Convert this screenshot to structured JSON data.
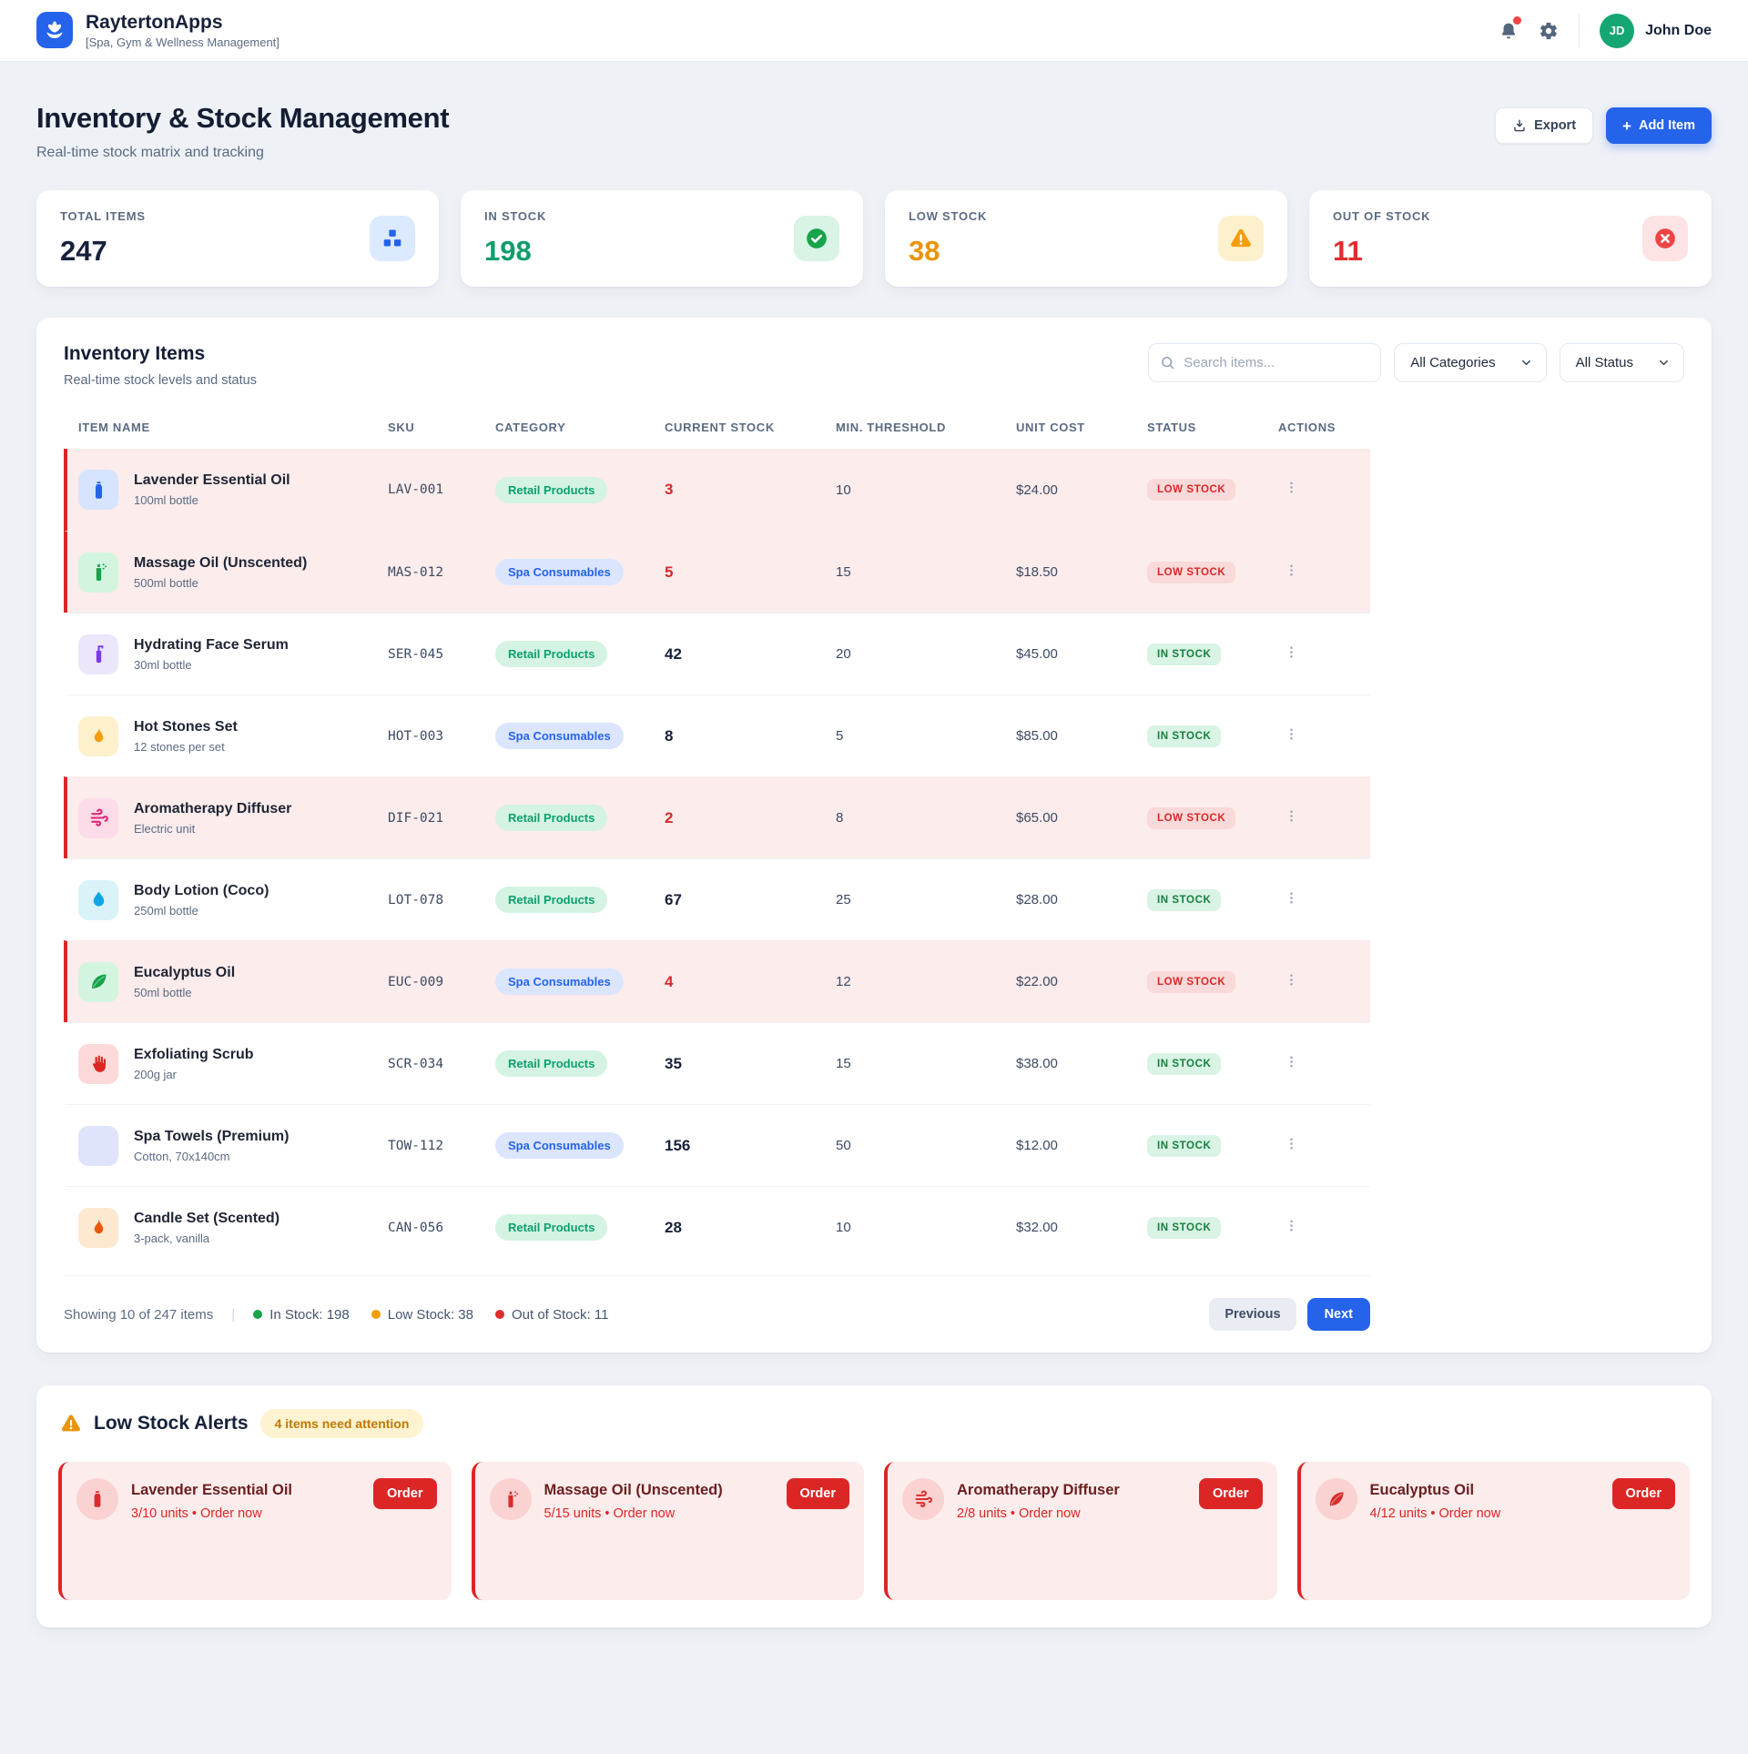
{
  "header": {
    "app_name": "RaytertonApps",
    "tagline": "[Spa, Gym & Wellness Management]",
    "user_name": "John Doe",
    "user_initials": "JD",
    "accent_color": "#2563eb",
    "avatar_color": "#16a673"
  },
  "page": {
    "title": "Inventory & Stock Management",
    "subtitle": "Real-time stock matrix and tracking",
    "export_label": "Export",
    "add_item_plus": "+",
    "add_item_label": "Add Item"
  },
  "stats": [
    {
      "label": "TOTAL ITEMS",
      "value": "247",
      "icon": "boxes-icon",
      "value_color": "#16213a",
      "icon_bg": "#dbeafe",
      "icon_color": "#2563eb"
    },
    {
      "label": "IN STOCK",
      "value": "198",
      "icon": "check-circle-icon",
      "value_color": "#0f9d6b",
      "icon_bg": "#d9f3e4",
      "icon_color": "#16a34a"
    },
    {
      "label": "LOW STOCK",
      "value": "38",
      "icon": "warning-icon",
      "value_color": "#e8950c",
      "icon_bg": "#fdf0cd",
      "icon_color": "#f59e0b"
    },
    {
      "label": "OUT OF STOCK",
      "value": "11",
      "icon": "x-circle-icon",
      "value_color": "#e02d2d",
      "icon_bg": "#fde3e3",
      "icon_color": "#ef4444"
    }
  ],
  "inventory": {
    "title": "Inventory Items",
    "subtitle": "Real-time stock levels and status",
    "search_placeholder": "Search items...",
    "category_filter": "All Categories",
    "status_filter": "All Status",
    "columns": [
      "ITEM NAME",
      "SKU",
      "CATEGORY",
      "CURRENT STOCK",
      "MIN. THRESHOLD",
      "UNIT COST",
      "STATUS",
      "ACTIONS"
    ],
    "rows": [
      {
        "name": "Lavender Essential Oil",
        "spec": "100ml bottle",
        "sku": "LAV-001",
        "category": "Retail Products",
        "category_type": "retail",
        "stock": "3",
        "threshold": "10",
        "cost": "$24.00",
        "status": "LOW STOCK",
        "low": true,
        "icon": "oil-bottle-icon",
        "icon_bg": "#d6e4ff",
        "icon_color": "#2563eb"
      },
      {
        "name": "Massage Oil (Unscented)",
        "spec": "500ml bottle",
        "sku": "MAS-012",
        "category": "Spa Consumables",
        "category_type": "spa",
        "stock": "5",
        "threshold": "15",
        "cost": "$18.50",
        "status": "LOW STOCK",
        "low": true,
        "icon": "spray-bottle-icon",
        "icon_bg": "#d3f5e0",
        "icon_color": "#16a34a"
      },
      {
        "name": "Hydrating Face Serum",
        "spec": "30ml bottle",
        "sku": "SER-045",
        "category": "Retail Products",
        "category_type": "retail",
        "stock": "42",
        "threshold": "20",
        "cost": "$45.00",
        "status": "IN STOCK",
        "low": false,
        "icon": "pump-bottle-icon",
        "icon_bg": "#ece6fb",
        "icon_color": "#7c3aed"
      },
      {
        "name": "Hot Stones Set",
        "spec": "12 stones per set",
        "sku": "HOT-003",
        "category": "Spa Consumables",
        "category_type": "spa",
        "stock": "8",
        "threshold": "5",
        "cost": "$85.00",
        "status": "IN STOCK",
        "low": false,
        "icon": "flame-icon",
        "icon_bg": "#fdf0cd",
        "icon_color": "#f59e0b"
      },
      {
        "name": "Aromatherapy Diffuser",
        "spec": "Electric unit",
        "sku": "DIF-021",
        "category": "Retail Products",
        "category_type": "retail",
        "stock": "2",
        "threshold": "8",
        "cost": "$65.00",
        "status": "LOW STOCK",
        "low": true,
        "icon": "steam-icon",
        "icon_bg": "#fbdce8",
        "icon_color": "#db2777"
      },
      {
        "name": "Body Lotion (Coco)",
        "spec": "250ml bottle",
        "sku": "LOT-078",
        "category": "Retail Products",
        "category_type": "retail",
        "stock": "67",
        "threshold": "25",
        "cost": "$28.00",
        "status": "IN STOCK",
        "low": false,
        "icon": "droplet-icon",
        "icon_bg": "#d9f3f8",
        "icon_color": "#0ea5e9"
      },
      {
        "name": "Eucalyptus Oil",
        "spec": "50ml bottle",
        "sku": "EUC-009",
        "category": "Spa Consumables",
        "category_type": "spa",
        "stock": "4",
        "threshold": "12",
        "cost": "$22.00",
        "status": "LOW STOCK",
        "low": true,
        "icon": "leaf-icon",
        "icon_bg": "#d3f5e0",
        "icon_color": "#16a34a"
      },
      {
        "name": "Exfoliating Scrub",
        "spec": "200g jar",
        "sku": "SCR-034",
        "category": "Retail Products",
        "category_type": "retail",
        "stock": "35",
        "threshold": "15",
        "cost": "$38.00",
        "status": "IN STOCK",
        "low": false,
        "icon": "hand-icon",
        "icon_bg": "#fdd9d9",
        "icon_color": "#dc2626"
      },
      {
        "name": "Spa Towels (Premium)",
        "spec": "Cotton, 70x140cm",
        "sku": "TOW-112",
        "category": "Spa Consumables",
        "category_type": "spa",
        "stock": "156",
        "threshold": "50",
        "cost": "$12.00",
        "status": "IN STOCK",
        "low": false,
        "icon": "towel-icon",
        "icon_bg": "#dfe3fb",
        "icon_color": "#dfe3fb"
      },
      {
        "name": "Candle Set (Scented)",
        "spec": "3-pack, vanilla",
        "sku": "CAN-056",
        "category": "Retail Products",
        "category_type": "retail",
        "stock": "28",
        "threshold": "10",
        "cost": "$32.00",
        "status": "IN STOCK",
        "low": false,
        "icon": "candle-flame-icon",
        "icon_bg": "#fde8d0",
        "icon_color": "#ea580c"
      }
    ],
    "footer": {
      "showing": "Showing 10 of 247 items",
      "legend": [
        {
          "label": "In Stock: 198",
          "color": "#16a34a"
        },
        {
          "label": "Low Stock: 38",
          "color": "#f59e0b"
        },
        {
          "label": "Out of Stock: 11",
          "color": "#e02d2d"
        }
      ],
      "prev_label": "Previous",
      "next_label": "Next"
    }
  },
  "alerts": {
    "title": "Low Stock Alerts",
    "badge": "4 items need attention",
    "order_label": "Order",
    "items": [
      {
        "name": "Lavender Essential Oil",
        "units": "3/10 units • Order now",
        "icon": "oil-bottle-icon"
      },
      {
        "name": "Massage Oil (Unscented)",
        "units": "5/15 units • Order now",
        "icon": "spray-bottle-icon"
      },
      {
        "name": "Aromatherapy Diffuser",
        "units": "2/8 units • Order now",
        "icon": "steam-icon"
      },
      {
        "name": "Eucalyptus Oil",
        "units": "4/12 units • Order now",
        "icon": "leaf-icon"
      }
    ]
  }
}
